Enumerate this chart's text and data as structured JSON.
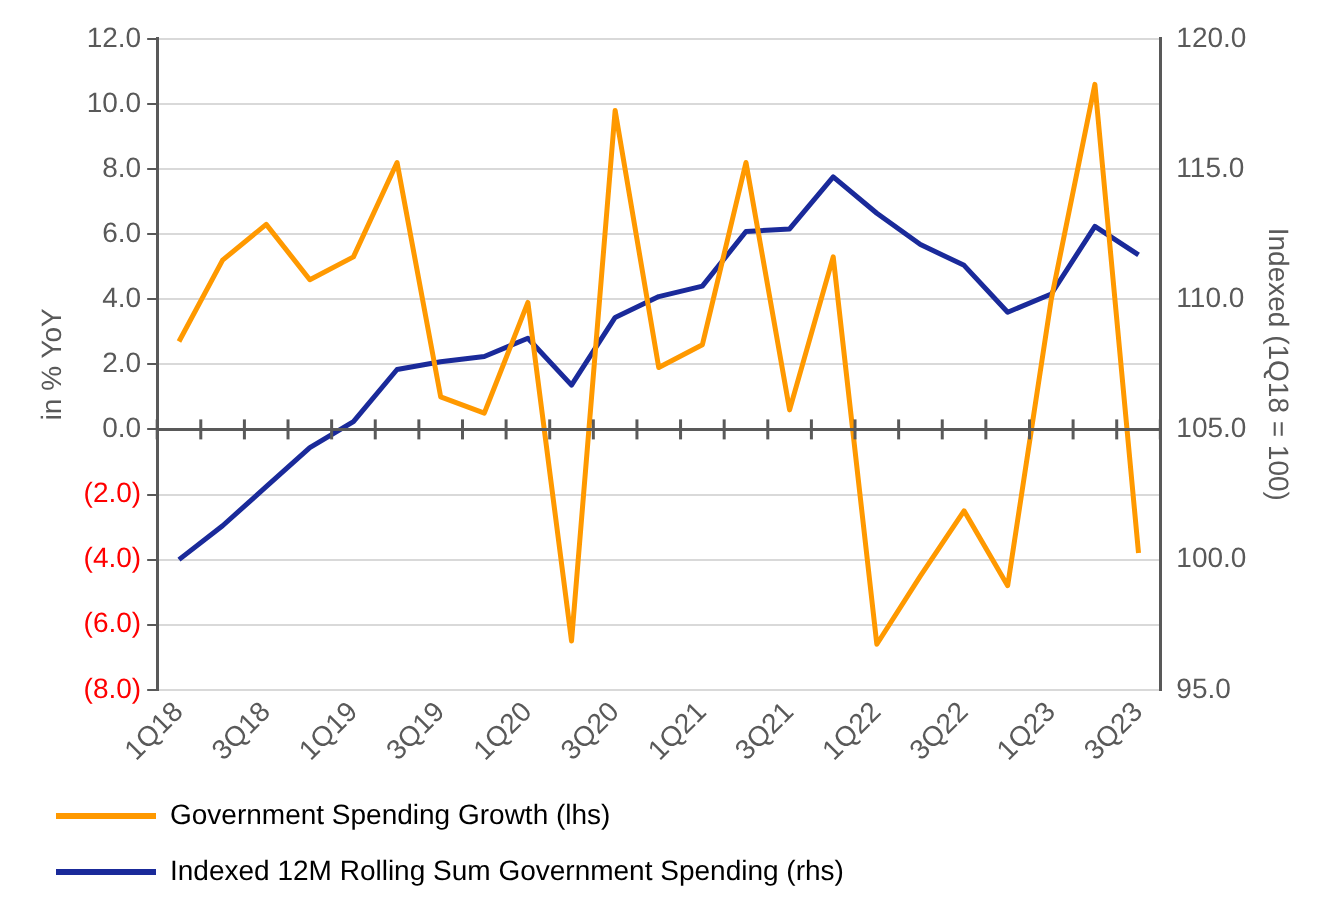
{
  "chart_data": {
    "type": "line",
    "categories": [
      "1Q18",
      null,
      "3Q18",
      null,
      "1Q19",
      null,
      "3Q19",
      null,
      "1Q20",
      null,
      "3Q20",
      null,
      "1Q21",
      null,
      "3Q21",
      null,
      "1Q22",
      null,
      "3Q22",
      null,
      "1Q23",
      null,
      "3Q23"
    ],
    "series": [
      {
        "name": "Government Spending Growth (lhs)",
        "color": "#ff9900",
        "values": [
          2.7,
          5.2,
          6.3,
          4.6,
          5.3,
          8.2,
          1.0,
          0.5,
          3.9,
          -6.5,
          9.8,
          1.9,
          2.6,
          8.2,
          0.6,
          5.3,
          -6.6,
          -4.5,
          -2.5,
          -4.8,
          4.0,
          10.6,
          -3.8
        ]
      },
      {
        "name": "Indexed 12M Rolling Sum Government Spending (rhs)",
        "color": "#1a2a9a",
        "axis": "y2",
        "values": [
          100.0,
          101.3,
          102.8,
          104.3,
          105.3,
          107.3,
          107.6,
          107.8,
          108.5,
          106.7,
          109.3,
          110.1,
          110.5,
          112.6,
          112.7,
          114.7,
          113.3,
          112.1,
          111.3,
          109.5,
          110.2,
          112.8,
          111.7
        ]
      }
    ],
    "ylabel": "in % YoY",
    "y2label": "Indexed (1Q18 = 100)",
    "ylim": [
      -8,
      12
    ],
    "yticks": [
      {
        "value": -8,
        "label": "(8.0)"
      },
      {
        "value": -6,
        "label": "(6.0)"
      },
      {
        "value": -4,
        "label": "(4.0)"
      },
      {
        "value": -2,
        "label": "(2.0)"
      },
      {
        "value": 0,
        "label": "0.0"
      },
      {
        "value": 2,
        "label": "2.0"
      },
      {
        "value": 4,
        "label": "4.0"
      },
      {
        "value": 6,
        "label": "6.0"
      },
      {
        "value": 8,
        "label": "8.0"
      },
      {
        "value": 10,
        "label": "10.0"
      },
      {
        "value": 12,
        "label": "12.0"
      }
    ],
    "y2lim": [
      95,
      120
    ],
    "y2ticks": [
      {
        "value": 95,
        "label": "95.0"
      },
      {
        "value": 100,
        "label": "100.0"
      },
      {
        "value": 105,
        "label": "105.0"
      },
      {
        "value": 110,
        "label": "110.0"
      },
      {
        "value": 115,
        "label": "115.0"
      },
      {
        "value": 120,
        "label": "120.0"
      }
    ],
    "grid": "y",
    "legend": "bottom",
    "marker": "none",
    "line_style": "solid"
  }
}
